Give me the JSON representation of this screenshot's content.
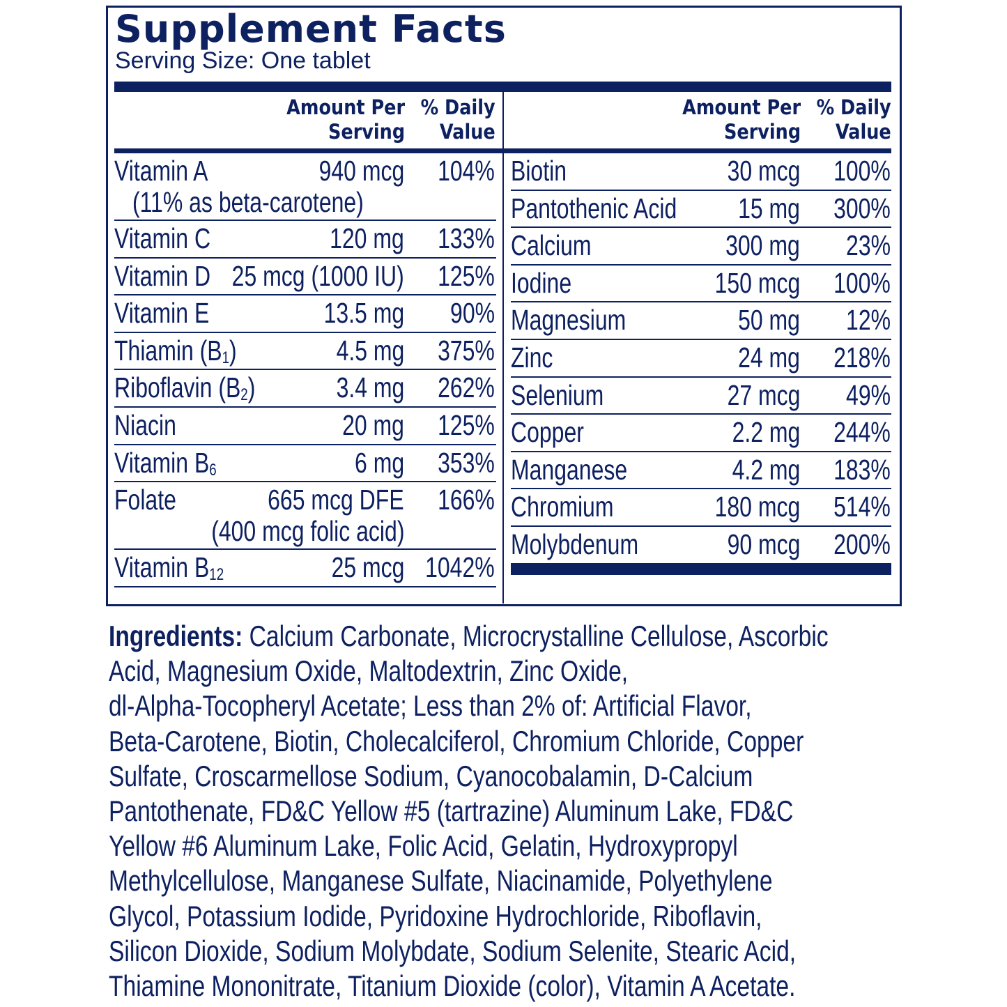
{
  "title": "Supplement Facts",
  "serving_size": "Serving Size: One tablet",
  "headers": {
    "amount_line1": "Amount Per",
    "amount_line2": "Serving",
    "dv_line1": "% Daily",
    "dv_line2": "Value"
  },
  "left_rows": [
    {
      "name": "Vitamin A",
      "sub": "",
      "amount": "940 mcg",
      "dv": "104%",
      "note": "(11% as beta-carotene)",
      "note_align": "left"
    },
    {
      "name": "Vitamin C",
      "sub": "",
      "amount": "120 mg",
      "dv": "133%"
    },
    {
      "name": "Vitamin D",
      "sub": "",
      "amount": "25 mcg (1000 IU)",
      "dv": "125%"
    },
    {
      "name": "Vitamin E",
      "sub": "",
      "amount": "13.5 mg",
      "dv": "90%"
    },
    {
      "name": "Thiamin (B",
      "sub": "1",
      "suffix": ")",
      "amount": "4.5 mg",
      "dv": "375%"
    },
    {
      "name": "Riboflavin (B",
      "sub": "2",
      "suffix": ")",
      "amount": "3.4 mg",
      "dv": "262%"
    },
    {
      "name": "Niacin",
      "sub": "",
      "amount": "20 mg",
      "dv": "125%"
    },
    {
      "name": "Vitamin B",
      "sub": "6",
      "amount": "6 mg",
      "dv": "353%"
    },
    {
      "name": "Folate",
      "sub": "",
      "amount": "665 mcg DFE",
      "dv": "166%",
      "note": "(400 mcg folic acid)",
      "note_align": "right"
    },
    {
      "name": "Vitamin B",
      "sub": "12",
      "amount": "25 mcg",
      "dv": "1042%"
    }
  ],
  "right_rows": [
    {
      "name": "Biotin",
      "amount": "30 mcg",
      "dv": "100%"
    },
    {
      "name": "Pantothenic Acid",
      "amount": "15 mg",
      "dv": "300%"
    },
    {
      "name": "Calcium",
      "amount": "300 mg",
      "dv": "23%"
    },
    {
      "name": "Iodine",
      "amount": "150 mcg",
      "dv": "100%"
    },
    {
      "name": "Magnesium",
      "amount": "50 mg",
      "dv": "12%"
    },
    {
      "name": "Zinc",
      "amount": "24 mg",
      "dv": "218%"
    },
    {
      "name": "Selenium",
      "amount": "27 mcg",
      "dv": "49%"
    },
    {
      "name": "Copper",
      "amount": "2.2 mg",
      "dv": "244%"
    },
    {
      "name": "Manganese",
      "amount": "4.2 mg",
      "dv": "183%"
    },
    {
      "name": "Chromium",
      "amount": "180 mcg",
      "dv": "514%"
    },
    {
      "name": "Molybdenum",
      "amount": "90 mcg",
      "dv": "200%"
    }
  ],
  "ingredients": {
    "label": "Ingredients:",
    "lines": [
      " Calcium Carbonate, Microcrystalline Cellulose, Ascorbic",
      "Acid, Magnesium Oxide, Maltodextrin, Zinc Oxide,",
      "dl-Alpha-Tocopheryl Acetate; Less than 2% of: Artificial Flavor,",
      "Beta-Carotene, Biotin, Cholecalciferol, Chromium Chloride, Copper",
      "Sulfate, Croscarmellose Sodium, Cyanocobalamin, D-Calcium",
      "Pantothenate, FD&C Yellow #5 (tartrazine) Aluminum Lake, FD&C",
      "Yellow #6 Aluminum Lake, Folic Acid, Gelatin, Hydroxypropyl",
      "Methylcellulose, Manganese Sulfate, Niacinamide, Polyethylene",
      "Glycol, Potassium Iodide, Pyridoxine Hydrochloride, Riboflavin,",
      "Silicon Dioxide, Sodium Molybdate, Sodium Selenite, Stearic Acid,",
      "Thiamine Mononitrate, Titanium Dioxide (color), Vitamin A Acetate."
    ]
  },
  "colors": {
    "ink": "#0d2060"
  }
}
